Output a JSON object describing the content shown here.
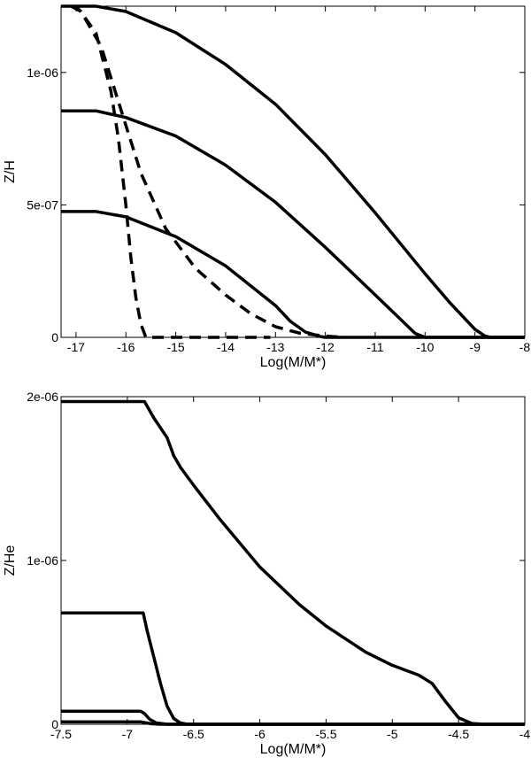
{
  "chart_data": [
    {
      "type": "line",
      "xlabel": "Log(M/M*)",
      "ylabel": "Z/H",
      "xlim": [
        -17.3,
        -8
      ],
      "ylim": [
        0,
        1.25e-06
      ],
      "x_ticks": [
        -17,
        -16,
        -15,
        -14,
        -13,
        -12,
        -11,
        -10,
        -9,
        -8
      ],
      "x_tick_labels": [
        "-17",
        "-16",
        "-15",
        "-14",
        "-13",
        "-12",
        "-11",
        "-10",
        "-9",
        "-8"
      ],
      "y_ticks": [
        0,
        5e-07,
        1e-06
      ],
      "y_tick_labels": [
        "0",
        "5e-07",
        "1e-06"
      ],
      "grid": false,
      "series": [
        {
          "style": "solid",
          "color": "#000000",
          "x": [
            -17.3,
            -16.6,
            -16.0,
            -15.0,
            -14.0,
            -13.0,
            -12.0,
            -11.0,
            -10.0,
            -9.5,
            -9.0,
            -8.8,
            -8.7,
            -8.0
          ],
          "y": [
            1.25e-06,
            1.25e-06,
            1.23e-06,
            1.15e-06,
            1.03e-06,
            8.8e-07,
            6.9e-07,
            4.7e-07,
            2.4e-07,
            1.3e-07,
            3e-08,
            5e-09,
            0,
            0
          ]
        },
        {
          "style": "solid",
          "color": "#000000",
          "x": [
            -17.3,
            -16.6,
            -16.0,
            -15.0,
            -14.0,
            -13.0,
            -12.0,
            -11.0,
            -10.5,
            -10.2,
            -10.0,
            -8.0
          ],
          "y": [
            8.55e-07,
            8.55e-07,
            8.3e-07,
            7.6e-07,
            6.5e-07,
            5.1e-07,
            3.4e-07,
            1.6e-07,
            7e-08,
            1.5e-08,
            0,
            0
          ]
        },
        {
          "style": "solid",
          "color": "#000000",
          "x": [
            -17.3,
            -16.6,
            -16.0,
            -15.0,
            -14.0,
            -13.0,
            -12.7,
            -12.4,
            -12.1,
            -12.0,
            -8.0
          ],
          "y": [
            4.75e-07,
            4.75e-07,
            4.55e-07,
            3.8e-07,
            2.7e-07,
            1.2e-07,
            6e-08,
            2e-08,
            3e-09,
            0,
            0
          ]
        },
        {
          "style": "dashed",
          "color": "#000000",
          "x": [
            -17.1,
            -16.9,
            -16.5,
            -16.1,
            -15.7,
            -15.2,
            -14.6,
            -14.0,
            -13.5,
            -13.0,
            -12.5,
            -12.0,
            -11.6
          ],
          "y": [
            1.25e-06,
            1.23e-06,
            1.1e-06,
            8.6e-07,
            6.2e-07,
            4.1e-07,
            2.6e-07,
            1.6e-07,
            9e-08,
            4e-08,
            1.5e-08,
            5e-09,
            0
          ]
        },
        {
          "style": "dashed",
          "color": "#000000",
          "x": [
            -17.1,
            -16.95,
            -16.6,
            -16.3,
            -16.15,
            -16.0,
            -15.9,
            -15.8,
            -15.7,
            -15.6,
            -15.4,
            -14.0,
            -13.1
          ],
          "y": [
            1.25e-06,
            1.24e-06,
            1.15e-06,
            9.3e-07,
            7.5e-07,
            5e-07,
            3e-07,
            1.5e-07,
            5e-08,
            0,
            0,
            0,
            0
          ]
        }
      ]
    },
    {
      "type": "line",
      "xlabel": "Log(M/M*)",
      "ylabel": "Z/He",
      "xlim": [
        -7.5,
        -4
      ],
      "ylim": [
        0,
        2e-06
      ],
      "x_ticks": [
        -7.5,
        -7,
        -6.5,
        -6,
        -5.5,
        -5,
        -4.5,
        -4
      ],
      "x_tick_labels": [
        "-7.5",
        "-7",
        "-6.5",
        "-6",
        "-5.5",
        "-5",
        "-4.5",
        "-4"
      ],
      "y_ticks": [
        0,
        1e-06,
        2e-06
      ],
      "y_tick_labels": [
        "0",
        "1e-06",
        "2e-06"
      ],
      "grid": false,
      "series": [
        {
          "style": "solid",
          "color": "#000000",
          "x": [
            -7.5,
            -6.87,
            -6.8,
            -6.7,
            -6.65,
            -6.6,
            -6.5,
            -6.3,
            -6.0,
            -5.7,
            -5.5,
            -5.2,
            -5.0,
            -4.8,
            -4.7,
            -4.6,
            -4.5,
            -4.4,
            -4.3,
            -4.0
          ],
          "y": [
            1.97e-06,
            1.97e-06,
            1.87e-06,
            1.75e-06,
            1.64e-06,
            1.57e-06,
            1.46e-06,
            1.25e-06,
            9.6e-07,
            7.3e-07,
            6e-07,
            4.4e-07,
            3.6e-07,
            3e-07,
            2.5e-07,
            1.4e-07,
            4e-08,
            5e-09,
            0,
            0
          ]
        },
        {
          "style": "solid",
          "color": "#000000",
          "x": [
            -7.5,
            -6.88,
            -6.85,
            -6.8,
            -6.75,
            -6.7,
            -6.65,
            -6.6,
            -6.55,
            -6.5,
            -4.0
          ],
          "y": [
            6.8e-07,
            6.8e-07,
            5.7e-07,
            4.1e-07,
            2.5e-07,
            1.1e-07,
            3.5e-08,
            8e-09,
            1e-09,
            0,
            0
          ]
        },
        {
          "style": "solid",
          "color": "#000000",
          "x": [
            -7.5,
            -6.9,
            -6.87,
            -6.83,
            -6.78,
            -6.7,
            -4.0
          ],
          "y": [
            8e-08,
            8e-08,
            6.5e-08,
            3e-08,
            8e-09,
            0,
            0
          ]
        },
        {
          "style": "solid",
          "color": "#000000",
          "x": [
            -7.5,
            -6.9,
            -6.87,
            -6.82,
            -6.75,
            -4.0
          ],
          "y": [
            1.5e-08,
            1.5e-08,
            1e-08,
            3e-09,
            0,
            0
          ]
        }
      ]
    }
  ]
}
